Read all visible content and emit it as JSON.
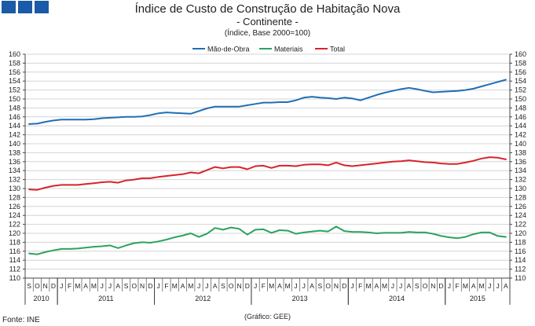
{
  "header": {
    "title": "Índice de Custo de Construção de Habitação Nova",
    "subtitle": "- Continente -",
    "unit": "(Índice, Base 2000=100)"
  },
  "footer": {
    "source": "Fonte: INE",
    "credit": "(Gráfico: GEE)"
  },
  "colors": {
    "mao_de_obra": "#1f6fb4",
    "materiais": "#2ca25f",
    "total": "#d8232a",
    "logo": "#1a5aa6"
  },
  "chart_data": {
    "type": "line",
    "title": "Índice de Custo de Construção de Habitação Nova - Continente -",
    "ylabel": "(Índice, Base 2000=100)",
    "xlabel": "",
    "ylim": [
      110,
      160
    ],
    "ytick_step": 2,
    "grid": true,
    "legend_position": "top-center",
    "categories": [
      "S",
      "O",
      "N",
      "D",
      "J",
      "F",
      "M",
      "A",
      "M",
      "J",
      "J",
      "A",
      "S",
      "O",
      "N",
      "D",
      "J",
      "F",
      "M",
      "A",
      "M",
      "J",
      "J",
      "A",
      "S",
      "O",
      "N",
      "D",
      "J",
      "F",
      "M",
      "A",
      "M",
      "J",
      "J",
      "A",
      "S",
      "O",
      "N",
      "D",
      "J",
      "F",
      "M",
      "A",
      "M",
      "J",
      "J",
      "A",
      "S",
      "O",
      "N",
      "D",
      "J",
      "F",
      "M",
      "A",
      "M",
      "J",
      "J",
      "A"
    ],
    "years": [
      {
        "label": "2010",
        "start": 0,
        "end": 3
      },
      {
        "label": "2011",
        "start": 4,
        "end": 15
      },
      {
        "label": "2012",
        "start": 16,
        "end": 27
      },
      {
        "label": "2013",
        "start": 28,
        "end": 39
      },
      {
        "label": "2014",
        "start": 40,
        "end": 51
      },
      {
        "label": "2015",
        "start": 52,
        "end": 59
      }
    ],
    "series": [
      {
        "name": "Mão-de-Obra",
        "color": "#1f6fb4",
        "values": [
          144.4,
          144.5,
          144.9,
          145.2,
          145.4,
          145.4,
          145.4,
          145.4,
          145.5,
          145.7,
          145.8,
          145.9,
          146.0,
          146.0,
          146.1,
          146.4,
          146.8,
          147.0,
          146.9,
          146.8,
          146.7,
          147.3,
          147.9,
          148.3,
          148.3,
          148.3,
          148.3,
          148.6,
          148.9,
          149.2,
          149.2,
          149.3,
          149.3,
          149.7,
          150.3,
          150.5,
          150.3,
          150.2,
          150.0,
          150.3,
          150.1,
          149.7,
          150.3,
          150.9,
          151.4,
          151.8,
          152.2,
          152.5,
          152.2,
          151.8,
          151.5,
          151.6,
          151.7,
          151.8,
          152.0,
          152.3,
          152.8,
          153.3,
          153.8,
          154.3
        ]
      },
      {
        "name": "Materiais",
        "color": "#2ca25f",
        "values": [
          115.5,
          115.3,
          115.8,
          116.2,
          116.5,
          116.5,
          116.6,
          116.8,
          117.0,
          117.1,
          117.3,
          116.7,
          117.3,
          117.8,
          118.0,
          117.9,
          118.2,
          118.6,
          119.1,
          119.5,
          120.0,
          119.2,
          119.9,
          121.2,
          120.8,
          121.3,
          121.0,
          119.7,
          120.8,
          120.9,
          120.1,
          120.7,
          120.6,
          119.9,
          120.2,
          120.4,
          120.6,
          120.4,
          121.5,
          120.5,
          120.3,
          120.3,
          120.2,
          120.0,
          120.1,
          120.1,
          120.1,
          120.3,
          120.2,
          120.2,
          119.9,
          119.4,
          119.1,
          118.9,
          119.2,
          119.8,
          120.2,
          120.2,
          119.4,
          119.2
        ]
      },
      {
        "name": "Total",
        "color": "#d8232a",
        "values": [
          129.8,
          129.7,
          130.2,
          130.6,
          130.8,
          130.8,
          130.8,
          131.0,
          131.2,
          131.4,
          131.5,
          131.3,
          131.8,
          132.0,
          132.3,
          132.3,
          132.6,
          132.8,
          133.0,
          133.2,
          133.6,
          133.4,
          134.1,
          134.8,
          134.5,
          134.8,
          134.8,
          134.3,
          135.0,
          135.1,
          134.6,
          135.1,
          135.1,
          135.0,
          135.3,
          135.4,
          135.4,
          135.2,
          135.8,
          135.2,
          135.0,
          135.2,
          135.4,
          135.6,
          135.8,
          136.0,
          136.1,
          136.3,
          136.1,
          135.9,
          135.8,
          135.6,
          135.5,
          135.5,
          135.8,
          136.2,
          136.7,
          137.0,
          136.9,
          136.5
        ]
      }
    ]
  }
}
